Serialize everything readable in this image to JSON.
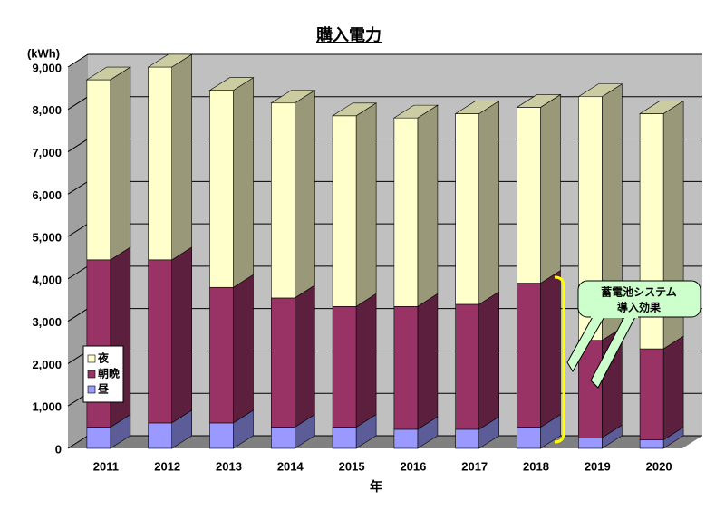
{
  "chart_data": {
    "type": "bar3d-stacked",
    "title": "購入電力",
    "y_label": "(kWh)",
    "x_label": "年",
    "categories": [
      "2011",
      "2012",
      "2013",
      "2014",
      "2015",
      "2016",
      "2017",
      "2018",
      "2019",
      "2020"
    ],
    "series": [
      {
        "name": "昼",
        "color": "#9999ff",
        "values": [
          500,
          600,
          600,
          500,
          500,
          450,
          450,
          500,
          250,
          200
        ]
      },
      {
        "name": "朝晩",
        "color": "#993366",
        "values": [
          3950,
          3850,
          3200,
          3050,
          2850,
          2900,
          2950,
          3400,
          2300,
          2150
        ]
      },
      {
        "name": "夜",
        "color": "#ffffcc",
        "values": [
          4250,
          4550,
          4650,
          4600,
          4500,
          4450,
          4500,
          4150,
          5750,
          5550
        ]
      }
    ],
    "ylim": [
      0,
      9000
    ],
    "yticks": [
      0,
      {
        "value": 1000,
        "label": "1,000"
      },
      {
        "value": 2000,
        "label": "2,000"
      },
      {
        "value": 3000,
        "label": "3,000"
      },
      {
        "value": 4000,
        "label": "4,000"
      },
      {
        "value": 5000,
        "label": "5,000"
      },
      {
        "value": 6000,
        "label": "6,000"
      },
      {
        "value": 7000,
        "label": "7,000"
      },
      {
        "value": 8000,
        "label": "8,000"
      },
      {
        "value": 9000,
        "label": "9,000"
      }
    ],
    "grid": true,
    "legend": "bottom-left",
    "annotation": [
      "蓄電池システム",
      "導入効果"
    ]
  }
}
